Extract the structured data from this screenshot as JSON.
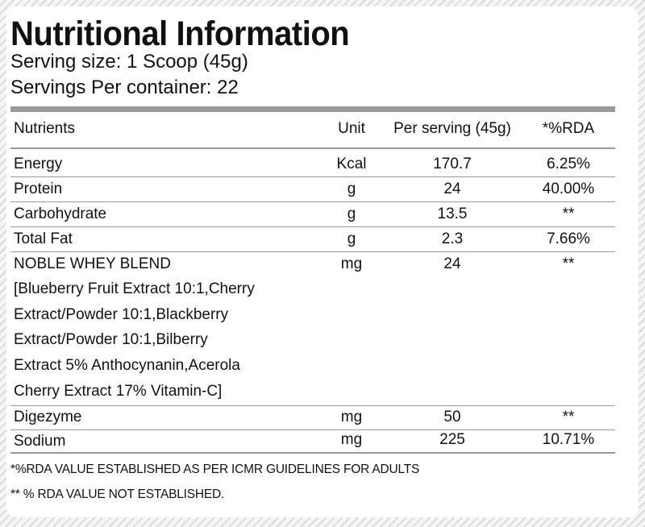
{
  "title": "Nutritional Information",
  "serving_size": "Serving size: 1 Scoop (45g)",
  "servings_per_container": "Servings Per container: 22",
  "table": {
    "headers": [
      "Nutrients",
      "Unit",
      "Per serving (45g)",
      "*%RDA"
    ],
    "rows": [
      {
        "nutrient": "Energy",
        "unit": "Kcal",
        "per_serving": "170.7",
        "rda": "6.25%"
      },
      {
        "nutrient": "Protein",
        "unit": "g",
        "per_serving": "24",
        "rda": "40.00%"
      },
      {
        "nutrient": "Carbohydrate",
        "unit": "g",
        "per_serving": "13.5",
        "rda": "**"
      },
      {
        "nutrient": "Total Fat",
        "unit": "g",
        "per_serving": "2.3",
        "rda": "7.66%"
      },
      {
        "nutrient": "NOBLE WHEY BLEND",
        "unit": "mg",
        "per_serving": "24",
        "rda": "**",
        "detail_lines": [
          "[Blueberry Fruit Extract 10:1,Cherry",
          "Extract/Powder 10:1,Blackberry",
          "Extract/Powder 10:1,Bilberry",
          "Extract 5% Anthocynanin,Acerola",
          "Cherry Extract 17% Vitamin-C]"
        ]
      },
      {
        "nutrient": "Digezyme",
        "unit": "mg",
        "per_serving": "50",
        "rda": "**"
      },
      {
        "nutrient": "Sodium",
        "unit": "mg",
        "per_serving": "225",
        "rda": "10.71%"
      }
    ]
  },
  "footnotes": [
    "*%RDA VALUE ESTABLISHED AS PER ICMR GUIDELINES FOR ADULTS",
    "** % RDA VALUE NOT ESTABLISHED."
  ]
}
